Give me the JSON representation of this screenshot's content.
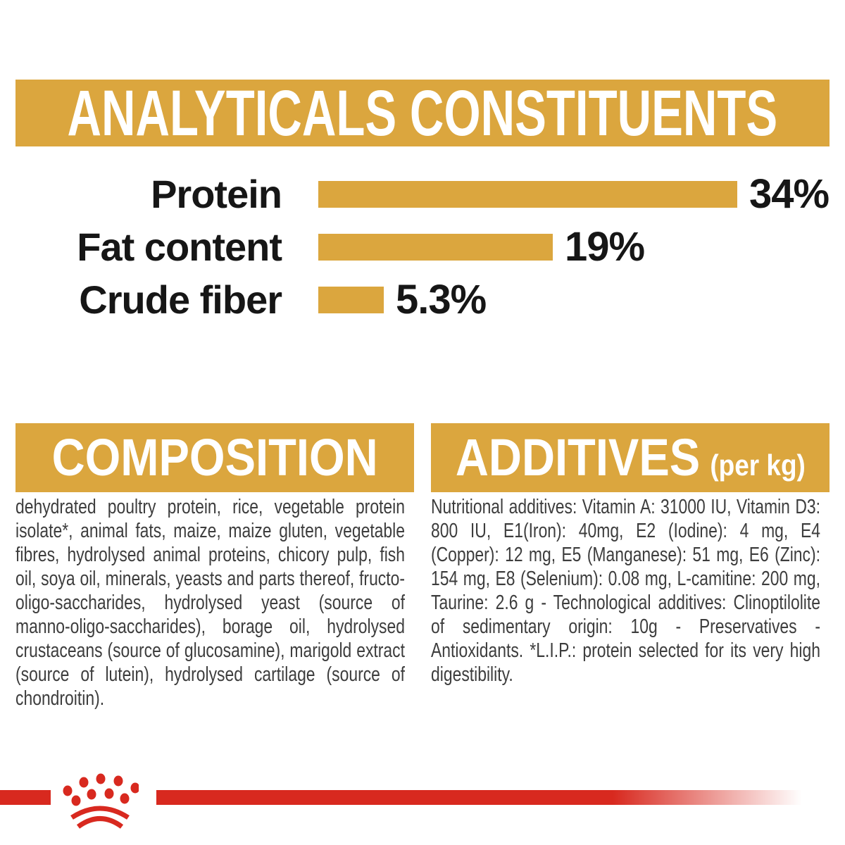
{
  "page": {
    "colors": {
      "gold": "#DBA63E",
      "red": "#D8291F",
      "ink": "#161616",
      "body": "#3D3D3D",
      "background": "#FFFFFF",
      "banner_text": "#FFFFFF"
    }
  },
  "analyticals": {
    "title": "ANALYTICALS CONSTITUENTS",
    "rows": [
      {
        "label": "Protein",
        "value": 34,
        "value_label": "34%"
      },
      {
        "label": "Fat content",
        "value": 19,
        "value_label": "19%"
      },
      {
        "label": "Crude fiber",
        "value": 5.3,
        "value_label": "5.3%"
      }
    ]
  },
  "chart_data": {
    "type": "bar",
    "orientation": "horizontal",
    "title": "ANALYTICALS CONSTITUENTS",
    "categories": [
      "Protein",
      "Fat content",
      "Crude fiber"
    ],
    "values": [
      34,
      19,
      5.3
    ],
    "unit": "%",
    "bar_color": "#DBA63E",
    "value_labels": [
      "34%",
      "19%",
      "5.3%"
    ],
    "legend": "none",
    "grid": false
  },
  "composition": {
    "title": "COMPOSITION",
    "body": "dehydrated poultry protein, rice, vegetable protein isolate*, animal fats, maize, maize gluten, vegetable fibres, hydrolysed animal proteins, chicory pulp, fish oil, soya oil, minerals, yeasts and parts thereof, fructo-oligo-saccharides, hydrolysed yeast (source of manno-oligo-saccharides), borage oil, hydrolysed crustaceans (source of glucosamine), marigold extract (source of lutein), hydrolysed cartilage (source of chondroitin)."
  },
  "additives": {
    "title": "ADDITIVES",
    "title_suffix": "(per kg)",
    "body": "Nutritional additives: Vitamin A: 31000 IU, Vitamin D3: 800 IU, E1(Iron): 40mg, E2 (Iodine): 4 mg, E4 (Copper): 12 mg, E5 (Manganese): 51 mg, E6 (Zinc): 154 mg, E8 (Selenium): 0.08 mg, L-camitine: 200 mg, Taurine: 2.6 g - Technological additives: Clinoptilolite of sedimentary origin: 10g - Preservatives - Antioxidants. *L.I.P.: protein selected for its very high digestibility."
  },
  "footer": {
    "logo": "royal-canin-crown"
  }
}
